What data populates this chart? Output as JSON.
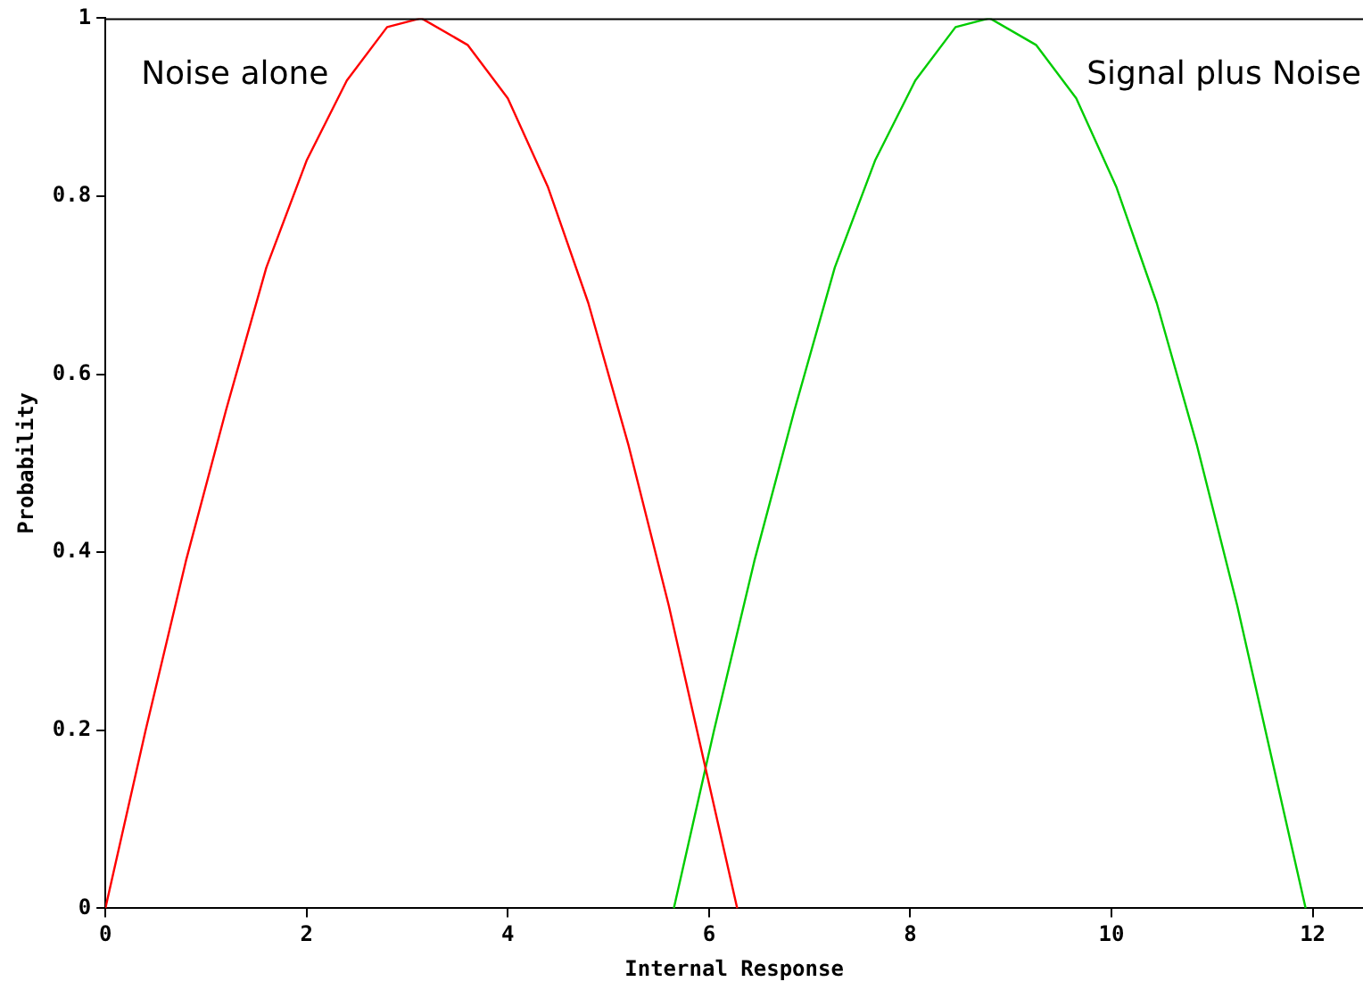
{
  "chart_data": {
    "type": "line",
    "xlabel": "Internal Response",
    "ylabel": "Probability",
    "xlim": [
      0,
      12.5
    ],
    "ylim": [
      0,
      1
    ],
    "xticks": [
      0,
      2,
      4,
      6,
      8,
      10,
      12
    ],
    "yticks": [
      0,
      0.2,
      0.4,
      0.6,
      0.8,
      1
    ],
    "grid": false,
    "legend": false,
    "marker": "none",
    "line_style": "solid",
    "series": [
      {
        "name": "Noise alone",
        "color": "#ff0000",
        "x": [
          0,
          0.4,
          0.8,
          1.2,
          1.6,
          2.0,
          2.4,
          2.8,
          3.14,
          3.6,
          4.0,
          4.4,
          4.8,
          5.2,
          5.6,
          6.0,
          6.28
        ],
        "values": [
          0,
          0.2,
          0.39,
          0.56,
          0.72,
          0.84,
          0.93,
          0.99,
          1,
          0.97,
          0.91,
          0.81,
          0.68,
          0.52,
          0.34,
          0.14,
          0
        ]
      },
      {
        "name": "Signal plus Noise",
        "color": "#00cc00",
        "x": [
          5.65,
          6.05,
          6.45,
          6.85,
          7.25,
          7.65,
          8.05,
          8.45,
          8.79,
          9.25,
          9.65,
          10.05,
          10.45,
          10.85,
          11.25,
          11.65,
          11.93
        ],
        "values": [
          0,
          0.2,
          0.39,
          0.56,
          0.72,
          0.84,
          0.93,
          0.99,
          1,
          0.97,
          0.91,
          0.81,
          0.68,
          0.52,
          0.34,
          0.14,
          0
        ]
      }
    ]
  }
}
